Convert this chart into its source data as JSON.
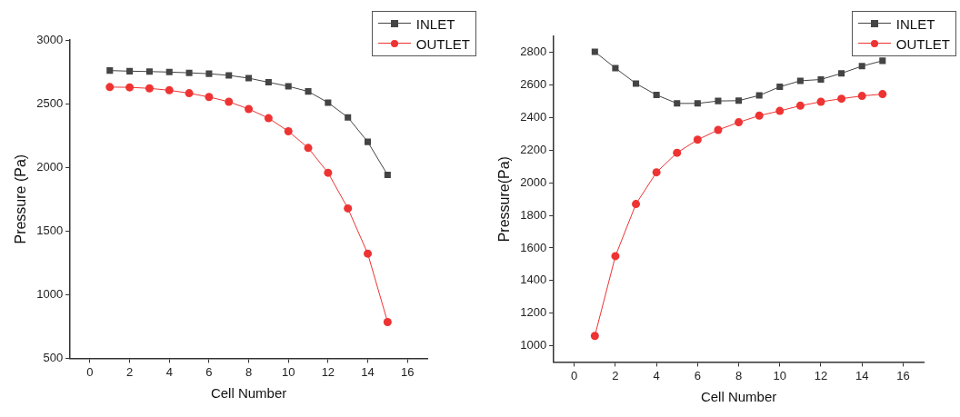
{
  "chart_data": [
    {
      "type": "line",
      "xlabel": "Cell Number",
      "ylabel": "Pressure (Pa)",
      "x": [
        1,
        2,
        3,
        4,
        5,
        6,
        7,
        8,
        9,
        10,
        11,
        12,
        13,
        14,
        15
      ],
      "xlim": [
        -1,
        17
      ],
      "xticks": [
        0,
        2,
        4,
        6,
        8,
        10,
        12,
        14,
        16
      ],
      "ylim": [
        500,
        3000
      ],
      "yticks": [
        500,
        1000,
        1500,
        2000,
        2500,
        3000
      ],
      "grid": false,
      "legend": "top right",
      "series": [
        {
          "name": "INLET",
          "color": "#444444",
          "marker": "square",
          "values": [
            2760,
            2755,
            2752,
            2748,
            2742,
            2735,
            2722,
            2700,
            2668,
            2636,
            2596,
            2508,
            2392,
            2200,
            1940
          ]
        },
        {
          "name": "OUTLET",
          "color": "#ee3333",
          "marker": "circle",
          "values": [
            2630,
            2628,
            2620,
            2605,
            2582,
            2552,
            2515,
            2458,
            2386,
            2283,
            2152,
            1957,
            1677,
            1322,
            785
          ]
        }
      ]
    },
    {
      "type": "line",
      "xlabel": "Cell Number",
      "ylabel": "Pressure(Pa)",
      "x": [
        1,
        2,
        3,
        4,
        5,
        6,
        7,
        8,
        9,
        10,
        11,
        12,
        13,
        14,
        15
      ],
      "xlim": [
        -1,
        17
      ],
      "xticks": [
        0,
        2,
        4,
        6,
        8,
        10,
        12,
        14,
        16
      ],
      "ylim": [
        900,
        2900
      ],
      "yticks": [
        1000,
        1200,
        1400,
        1600,
        1800,
        2000,
        2200,
        2400,
        2600,
        2800
      ],
      "grid": false,
      "legend": "top right",
      "series": [
        {
          "name": "INLET",
          "color": "#444444",
          "marker": "square",
          "values": [
            2805,
            2705,
            2610,
            2540,
            2488,
            2488,
            2503,
            2505,
            2537,
            2590,
            2627,
            2635,
            2673,
            2717,
            2750
          ]
        },
        {
          "name": "OUTLET",
          "color": "#ee3333",
          "marker": "circle",
          "values": [
            1060,
            1550,
            1870,
            2065,
            2185,
            2265,
            2325,
            2372,
            2413,
            2442,
            2474,
            2498,
            2517,
            2534,
            2545
          ]
        }
      ]
    }
  ]
}
